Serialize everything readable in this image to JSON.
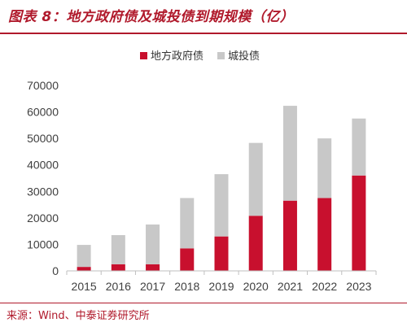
{
  "figure_title": "图表 8：地方政府债及城投债到期规模（亿）",
  "source_note": "来源：Wind、中泰证券研究所",
  "colors": {
    "brand": "#b0192b",
    "local_gov_bond": "#c8102e",
    "lgfv_bond": "#c8c8c8"
  },
  "chart_data": {
    "type": "bar",
    "stacked": true,
    "title": "",
    "xlabel": "",
    "ylabel": "",
    "categories": [
      "2015",
      "2016",
      "2017",
      "2018",
      "2019",
      "2020",
      "2021",
      "2022",
      "2023"
    ],
    "ylim": [
      0,
      70000
    ],
    "yticks": [
      0,
      10000,
      20000,
      30000,
      40000,
      50000,
      60000,
      70000
    ],
    "legend_position": "top-center",
    "grid": false,
    "series": [
      {
        "name": "地方政府债",
        "color": "#c8102e",
        "values": [
          1500,
          2500,
          2500,
          8500,
          13000,
          20800,
          26500,
          27500,
          36000
        ]
      },
      {
        "name": "城投债",
        "color": "#c8c8c8",
        "values": [
          8300,
          11000,
          15000,
          19000,
          23500,
          27500,
          35800,
          22500,
          21500
        ]
      }
    ]
  }
}
